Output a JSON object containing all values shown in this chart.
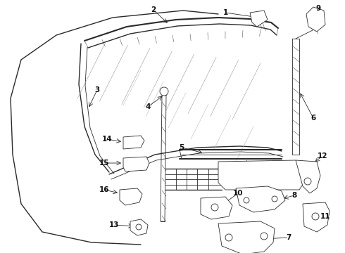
{
  "background_color": "#ffffff",
  "line_color": "#2a2a2a",
  "label_color": "#111111",
  "fig_width": 4.9,
  "fig_height": 3.6,
  "dpi": 100
}
